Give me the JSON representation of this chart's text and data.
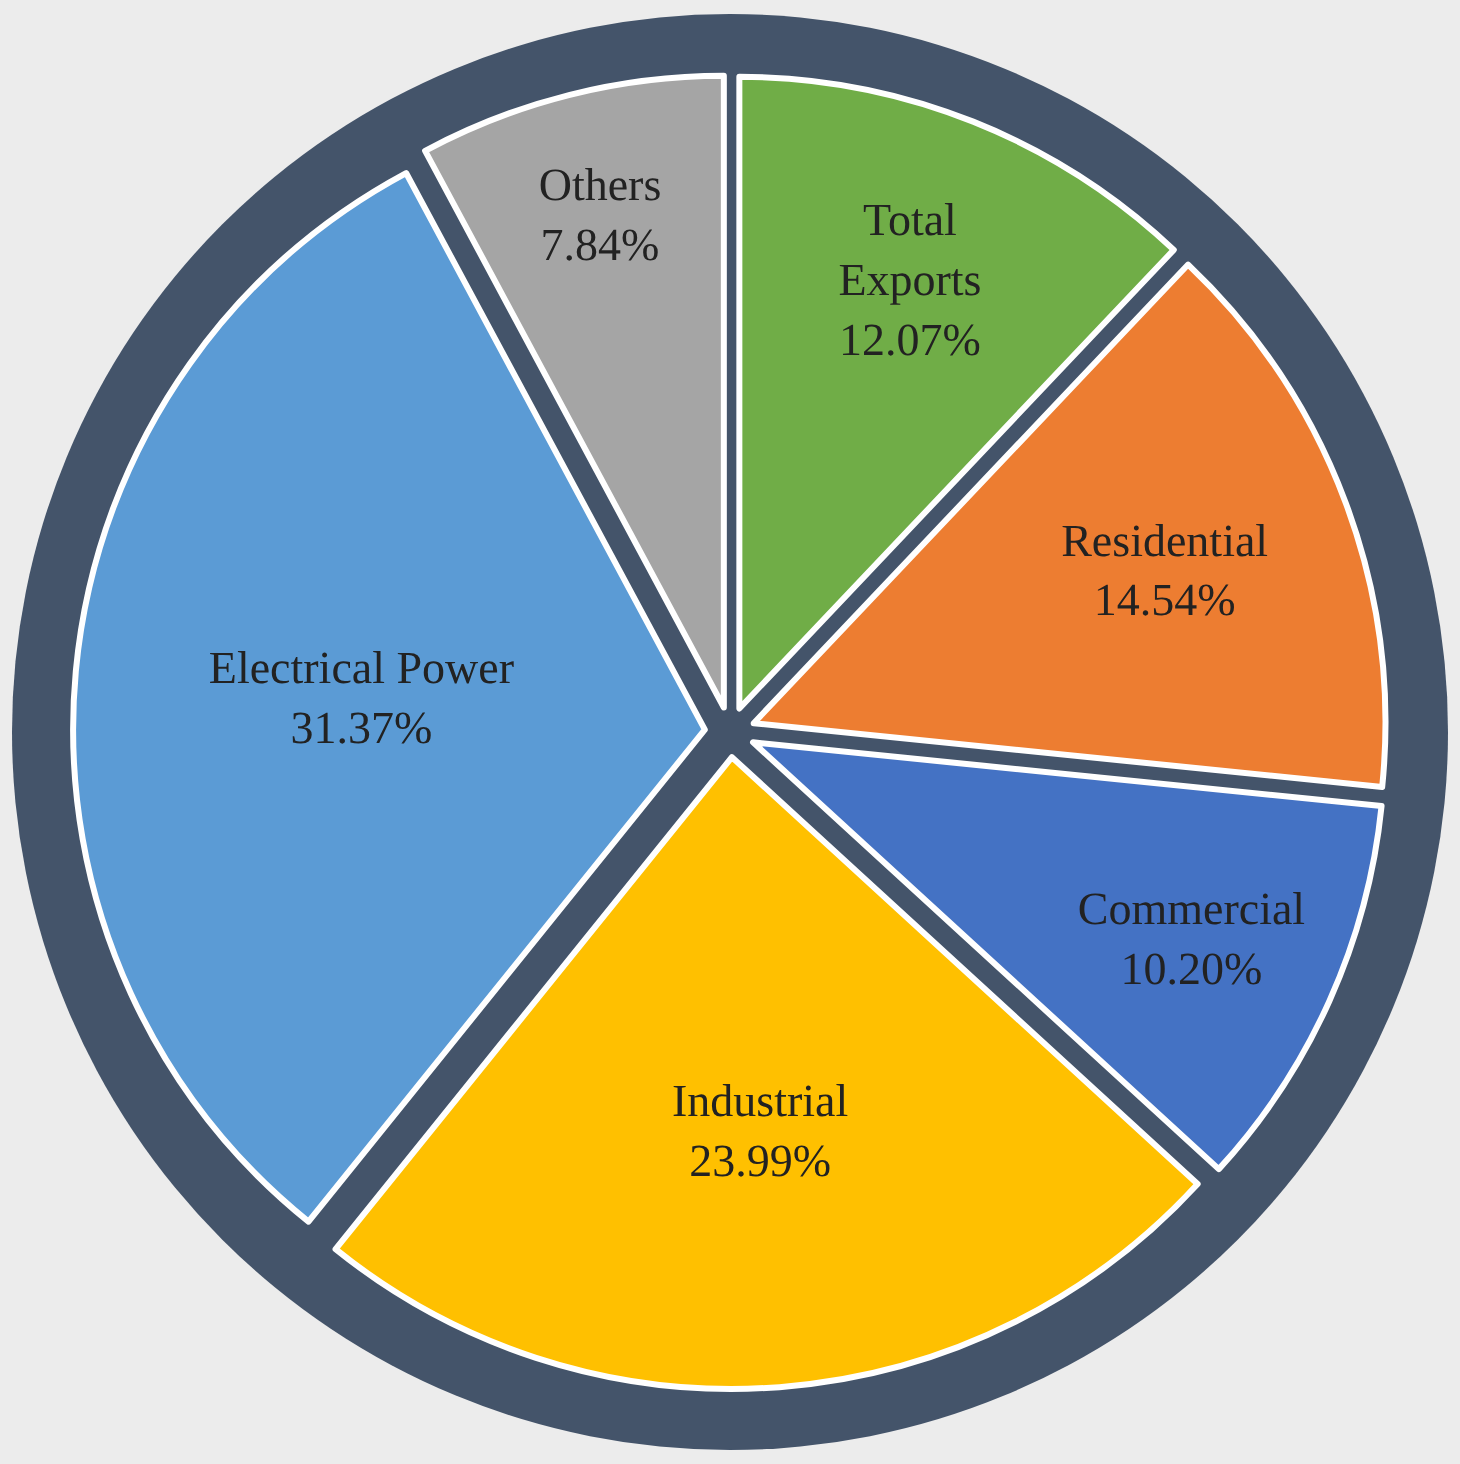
{
  "chart_data": {
    "type": "pie",
    "categories": [
      "Total Exports",
      "Residential",
      "Commercial",
      "Industrial",
      "Electrical Power",
      "Others"
    ],
    "values": [
      12.07,
      14.54,
      10.2,
      23.99,
      31.37,
      7.84
    ],
    "value_labels": [
      "12.07%",
      "14.54%",
      "10.20%",
      "23.99%",
      "31.37%",
      "7.84%"
    ],
    "colors": [
      "#70ad47",
      "#ed7d31",
      "#4472c4",
      "#ffc000",
      "#5b9bd5",
      "#a5a5a5"
    ],
    "legend": false
  }
}
